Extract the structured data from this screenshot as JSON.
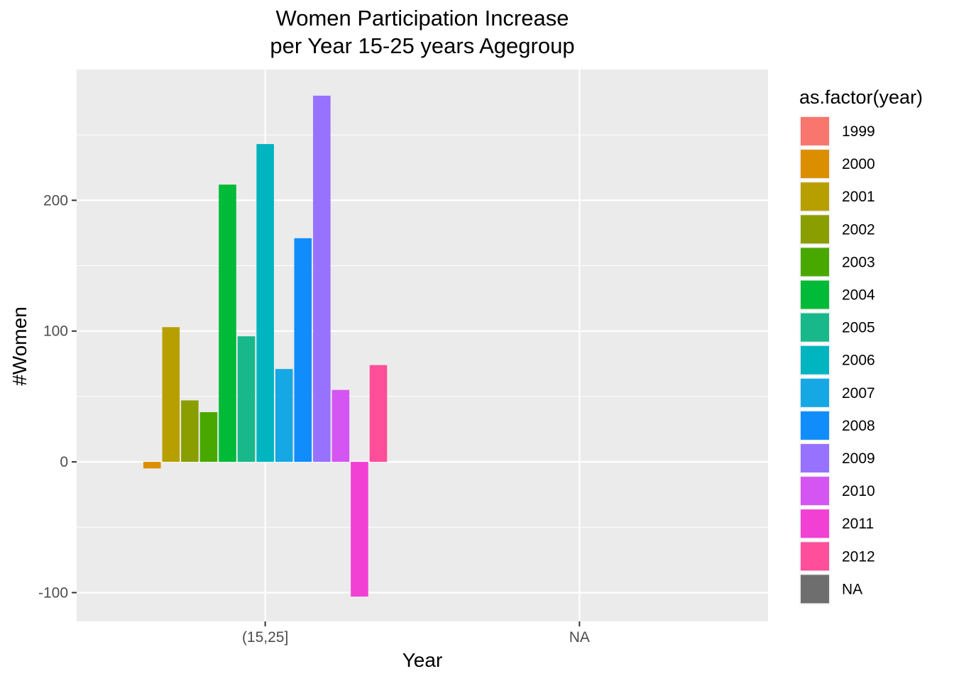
{
  "chart_data": {
    "type": "bar",
    "title": "Women Participation Increase\n per Year 15-25 years Agegroup",
    "title_lines": [
      "Women Participation Increase",
      "per Year 15-25 years Agegroup"
    ],
    "xlabel": "Year",
    "ylabel": "#Women",
    "x_categories": [
      "(15,25]",
      "NA"
    ],
    "y_ticks": [
      -100,
      0,
      100,
      200
    ],
    "y_tick_labels": [
      "-100",
      "0",
      "100",
      "200"
    ],
    "ylim": [
      -122,
      300
    ],
    "grid": true,
    "legend_position": "right",
    "legend_title": "as.factor(year)",
    "legend": [
      {
        "label": "1999",
        "color": "#F8766D"
      },
      {
        "label": "2000",
        "color": "#DB8E00"
      },
      {
        "label": "2001",
        "color": "#B79F00"
      },
      {
        "label": "2002",
        "color": "#8A9E00"
      },
      {
        "label": "2003",
        "color": "#49A800"
      },
      {
        "label": "2004",
        "color": "#00BA38"
      },
      {
        "label": "2005",
        "color": "#18B88A"
      },
      {
        "label": "2006",
        "color": "#00B4C0"
      },
      {
        "label": "2007",
        "color": "#15A8E4"
      },
      {
        "label": "2008",
        "color": "#108DFB"
      },
      {
        "label": "2009",
        "color": "#9771FF"
      },
      {
        "label": "2010",
        "color": "#D455F1"
      },
      {
        "label": "2011",
        "color": "#F23FD4"
      },
      {
        "label": "2012",
        "color": "#FF4E9A"
      },
      {
        "label": "NA",
        "color": "#6E6E6E"
      }
    ],
    "series": [
      {
        "name": "2000",
        "category": "(15,25]",
        "value": -5,
        "color": "#DB8E00"
      },
      {
        "name": "2001",
        "category": "(15,25]",
        "value": 103,
        "color": "#B79F00"
      },
      {
        "name": "2002",
        "category": "(15,25]",
        "value": 47,
        "color": "#8A9E00"
      },
      {
        "name": "2003",
        "category": "(15,25]",
        "value": 38,
        "color": "#49A800"
      },
      {
        "name": "2004",
        "category": "(15,25]",
        "value": 212,
        "color": "#00BA38"
      },
      {
        "name": "2005",
        "category": "(15,25]",
        "value": 96,
        "color": "#18B88A"
      },
      {
        "name": "2006",
        "category": "(15,25]",
        "value": 243,
        "color": "#00B4C0"
      },
      {
        "name": "2007",
        "category": "(15,25]",
        "value": 71,
        "color": "#15A8E4"
      },
      {
        "name": "2008",
        "category": "(15,25]",
        "value": 171,
        "color": "#108DFB"
      },
      {
        "name": "2009",
        "category": "(15,25]",
        "value": 280,
        "color": "#9771FF"
      },
      {
        "name": "2010",
        "category": "(15,25]",
        "value": 55,
        "color": "#D455F1"
      },
      {
        "name": "2011",
        "category": "(15,25]",
        "value": -103,
        "color": "#F23FD4"
      },
      {
        "name": "2012",
        "category": "(15,25]",
        "value": 74,
        "color": "#FF4E9A"
      }
    ]
  }
}
